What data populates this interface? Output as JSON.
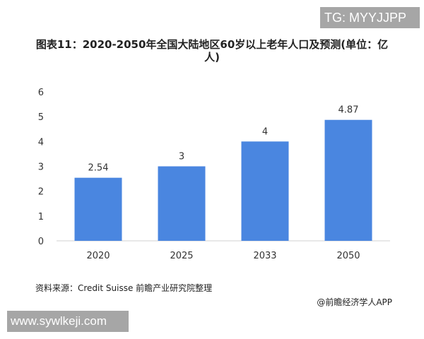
{
  "watermark_top": "TG: MYYJJPP",
  "watermark_bottom": "www.sywlkeji.com",
  "source": "资料来源：Credit Suisse 前瞻产业研究院整理",
  "credit": "@前瞻经济学人APP",
  "chart_data": {
    "type": "bar",
    "title": "图表11：2020-2050年全国大陆地区60岁以上老年人口及预测(单位：亿人)",
    "categories": [
      "2020",
      "2025",
      "2033",
      "2050"
    ],
    "values": [
      2.54,
      3,
      4,
      4.87
    ],
    "data_labels": [
      "2.54",
      "3",
      "4",
      "4.87"
    ],
    "ylim": [
      0,
      6
    ],
    "yticks": [
      "0",
      "1",
      "2",
      "3",
      "4",
      "5",
      "6"
    ],
    "grid": false,
    "bar_color": "#4a86e0",
    "xlabel": "",
    "ylabel": ""
  }
}
